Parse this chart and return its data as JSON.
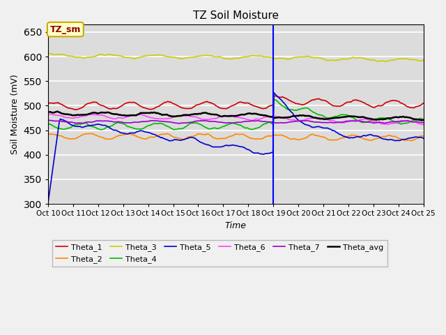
{
  "title": "TZ Soil Moisture",
  "xlabel": "Time",
  "ylabel": "Soil Moisture (mV)",
  "ylim": [
    300,
    665
  ],
  "yticks": [
    300,
    350,
    400,
    450,
    500,
    550,
    600,
    650
  ],
  "fig_bg": "#f0f0f0",
  "plot_bg": "#dcdcdc",
  "grid_color": "#ffffff",
  "vline_x": 9.0,
  "series_colors": {
    "Theta_1": "#cc0000",
    "Theta_2": "#ff8800",
    "Theta_3": "#cccc00",
    "Theta_4": "#00bb00",
    "Theta_5": "#0000cc",
    "Theta_6": "#ff44ff",
    "Theta_7": "#9900cc",
    "Theta_avg": "#000000"
  },
  "xtick_labels": [
    "Oct 10",
    "Oct 11",
    "Oct 12",
    "Oct 13",
    "Oct 14",
    "Oct 15",
    "Oct 16",
    "Oct 17",
    "Oct 18",
    "Oct 19",
    "Oct 20",
    "Oct 21",
    "Oct 22",
    "Oct 23",
    "Oct 24",
    "Oct 25"
  ],
  "box_label": "TZ_sm",
  "box_facecolor": "#ffffcc",
  "box_edgecolor": "#ccaa00"
}
